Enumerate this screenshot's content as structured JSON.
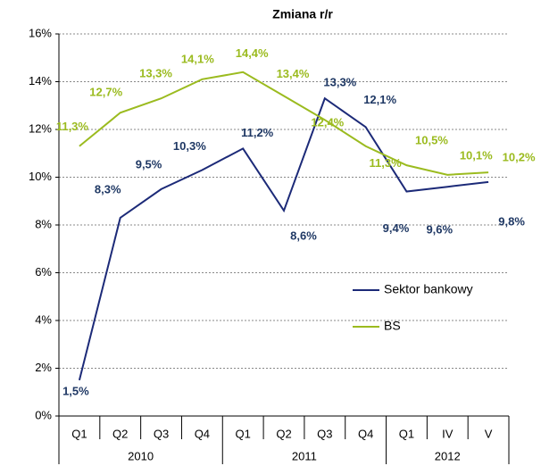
{
  "chart_data": {
    "type": "line",
    "title": "Zmiana r/r",
    "categories": [
      "Q1",
      "Q2",
      "Q3",
      "Q4",
      "Q1",
      "Q2",
      "Q3",
      "Q4",
      "Q1",
      "IV",
      "V"
    ],
    "groups": [
      {
        "label": "2010",
        "span": 4
      },
      {
        "label": "2011",
        "span": 4
      },
      {
        "label": "2012",
        "span": 3
      }
    ],
    "series": [
      {
        "name": "Sektor bankowy",
        "color": "#1c2a78",
        "values": [
          1.5,
          8.3,
          9.5,
          10.3,
          11.2,
          8.6,
          13.3,
          12.1,
          9.4,
          9.6,
          9.8
        ],
        "value_labels": [
          "1,5%",
          "8,3%",
          "9,5%",
          "10,3%",
          "11,2%",
          "8,6%",
          "13,3%",
          "12,1%",
          "9,4%",
          "9,6%",
          "9,8%"
        ]
      },
      {
        "name": "BS",
        "color": "#9bbb1f",
        "values": [
          11.3,
          12.7,
          13.3,
          14.1,
          14.4,
          13.4,
          12.4,
          11.3,
          10.5,
          10.1,
          10.2
        ],
        "value_labels": [
          "11,3%",
          "12,7%",
          "13,3%",
          "14,1%",
          "14,4%",
          "13,4%",
          "12,4%",
          "11,3%",
          "10,5%",
          "10,1%",
          "10,2%"
        ]
      }
    ],
    "ylim": [
      0,
      16
    ],
    "yticks": [
      {
        "value": 0,
        "label": "0%"
      },
      {
        "value": 2,
        "label": "2%"
      },
      {
        "value": 4,
        "label": "4%"
      },
      {
        "value": 6,
        "label": "6%"
      },
      {
        "value": 8,
        "label": "8%"
      },
      {
        "value": 10,
        "label": "10%"
      },
      {
        "value": 12,
        "label": "12%"
      },
      {
        "value": 14,
        "label": "14%"
      },
      {
        "value": 16,
        "label": "16%"
      }
    ],
    "grid": true
  }
}
